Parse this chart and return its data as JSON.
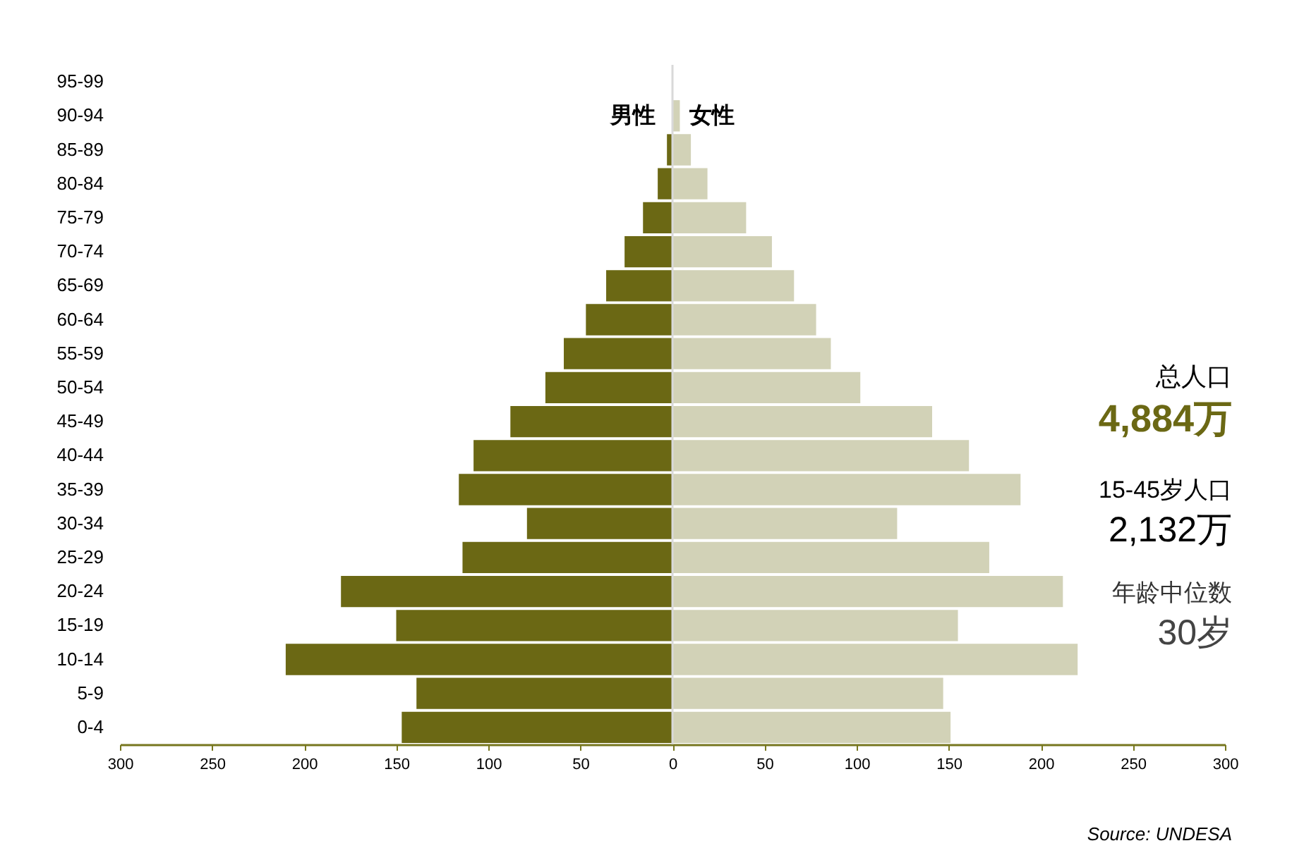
{
  "chart_data": {
    "type": "bar",
    "orientation": "horizontal",
    "stacked": true,
    "categories": [
      "95-99",
      "90-94",
      "85-89",
      "80-84",
      "75-79",
      "70-74",
      "65-69",
      "60-64",
      "55-59",
      "50-54",
      "45-49",
      "40-44",
      "35-39",
      "30-34",
      "25-29",
      "20-24",
      "15-19",
      "10-14",
      "5-9",
      "0-4"
    ],
    "series": [
      {
        "name": "男性",
        "color": "#6b6814",
        "values": [
          null,
          null,
          -3,
          -8,
          -16,
          -26,
          -36,
          -47,
          -59,
          -69,
          -88,
          -108,
          -116,
          -79,
          -114,
          -180,
          -150,
          -210,
          -139,
          -147
        ]
      },
      {
        "name": "女性",
        "color": "#d2d2b7",
        "values": [
          null,
          4,
          10,
          19,
          40,
          54,
          66,
          78,
          86,
          102,
          141,
          161,
          189,
          122,
          172,
          212,
          155,
          220,
          147,
          151
        ]
      }
    ],
    "xlim": [
      -300,
      300
    ],
    "xticks": [
      {
        "value": -300,
        "label": "300"
      },
      {
        "value": -250,
        "label": "250"
      },
      {
        "value": -200,
        "label": "200"
      },
      {
        "value": -150,
        "label": "150"
      },
      {
        "value": -100,
        "label": "100"
      },
      {
        "value": -50,
        "label": "50"
      },
      0,
      50,
      100,
      150,
      200,
      250,
      300
    ],
    "ref_lines": [
      {
        "axis": "x",
        "value": 0,
        "color": "#d9d9d9"
      }
    ],
    "annotations": [
      "总人口",
      "4,884万",
      "15-45岁人口",
      "2,132万",
      "年龄中位数",
      "30岁",
      "Source: UNDESA"
    ]
  }
}
